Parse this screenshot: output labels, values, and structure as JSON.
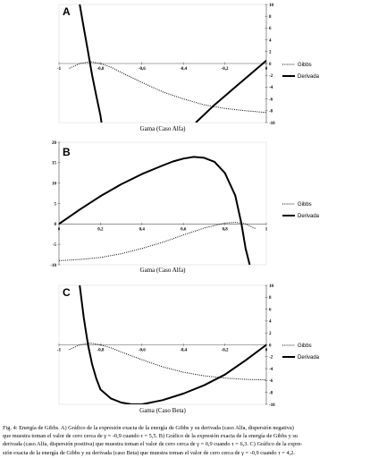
{
  "chart_data": [
    {
      "type": "line",
      "panel_label": "A",
      "xlabel": "Gama (Caso Alfa)",
      "xlim": [
        -1,
        0
      ],
      "ylim": [
        -10,
        10
      ],
      "x_tick_labels": [
        "-1",
        "-0,8",
        "-0,6",
        "-0,4",
        "-0,2",
        "0"
      ],
      "y_tick_labels": [
        "10",
        "8",
        "6",
        "4",
        "2",
        "0",
        "-2",
        "-4",
        "-6",
        "-8",
        "-10"
      ],
      "legend_position": "right",
      "series": [
        {
          "name": "Gibbs",
          "style": "dotted",
          "x": [
            -0.95,
            -0.9,
            -0.85,
            -0.8,
            -0.75,
            -0.7,
            -0.6,
            -0.5,
            -0.4,
            -0.3,
            -0.2,
            -0.1,
            0
          ],
          "y": [
            -0.8,
            0,
            0.3,
            0,
            -0.6,
            -1.5,
            -3.2,
            -4.8,
            -6,
            -7,
            -7.6,
            -8,
            -8.3
          ]
        },
        {
          "name": "Derivada",
          "style": "solid",
          "x": [
            -0.9,
            -0.88,
            -0.86,
            -0.84,
            -0.82,
            -0.8,
            -0.795
          ],
          "y": [
            10,
            6,
            2,
            -2,
            -5.5,
            -8.8,
            -10
          ]
        },
        {
          "name": "",
          "style": "solid",
          "x": [
            -0.34,
            -0.25,
            -0.15,
            -0.05,
            0
          ],
          "y": [
            -10,
            -7,
            -4,
            -1,
            0.5
          ]
        }
      ]
    },
    {
      "type": "line",
      "panel_label": "B",
      "xlabel": "Gama (Caso Alfa)",
      "xlim": [
        0,
        1
      ],
      "ylim": [
        -10,
        20
      ],
      "x_tick_labels": [
        "0",
        "0,2",
        "0,4",
        "0,6",
        "0,8",
        "1"
      ],
      "y_tick_labels": [
        "20",
        "15",
        "10",
        "5",
        "0",
        "-5",
        "-10"
      ],
      "legend_position": "right",
      "series": [
        {
          "name": "Gibbs",
          "style": "dotted",
          "x": [
            0,
            0.1,
            0.2,
            0.3,
            0.4,
            0.5,
            0.6,
            0.7,
            0.8,
            0.85,
            0.9,
            0.95
          ],
          "y": [
            -9,
            -8.7,
            -8.2,
            -7.3,
            -6,
            -4.5,
            -2.7,
            -1,
            0.2,
            0.4,
            0,
            -1.2
          ]
        },
        {
          "name": "Derivada",
          "style": "solid",
          "x": [
            0,
            0.1,
            0.2,
            0.3,
            0.4,
            0.5,
            0.55,
            0.6,
            0.65,
            0.7,
            0.75,
            0.8,
            0.85,
            0.88,
            0.9,
            0.92
          ],
          "y": [
            0,
            3.5,
            6.8,
            9.7,
            12.2,
            14.3,
            15.3,
            16,
            16.4,
            16.2,
            15.2,
            12.5,
            7,
            0,
            -6,
            -10
          ]
        }
      ]
    },
    {
      "type": "line",
      "panel_label": "C",
      "xlabel": "Gama (Caso Beta)",
      "xlim": [
        -1,
        0
      ],
      "ylim": [
        -10,
        10
      ],
      "x_tick_labels": [
        "-1",
        "-0,8",
        "-0,6",
        "-0,4",
        "-0,2",
        "0"
      ],
      "y_tick_labels": [
        "10",
        "8",
        "6",
        "4",
        "2",
        "0",
        "-2",
        "-4",
        "-6",
        "-8",
        "-10"
      ],
      "legend_position": "right",
      "series": [
        {
          "name": "Gibbs",
          "style": "dotted",
          "x": [
            -0.95,
            -0.9,
            -0.85,
            -0.8,
            -0.75,
            -0.7,
            -0.6,
            -0.5,
            -0.4,
            -0.3,
            -0.2,
            -0.1,
            0
          ],
          "y": [
            -0.8,
            0,
            0.3,
            0,
            -0.5,
            -1.2,
            -2.5,
            -3.7,
            -4.6,
            -5.2,
            -5.6,
            -5.8,
            -5.9
          ]
        },
        {
          "name": "Derivada",
          "style": "solid",
          "x": [
            -0.9,
            -0.88,
            -0.86,
            -0.84,
            -0.82,
            -0.8,
            -0.75,
            -0.7,
            -0.65,
            -0.6,
            -0.5,
            -0.4,
            -0.3,
            -0.2,
            -0.1,
            0
          ],
          "y": [
            10,
            4.5,
            0,
            -3.3,
            -5.7,
            -7.5,
            -9,
            -9.7,
            -10,
            -10,
            -9.3,
            -8.2,
            -6.8,
            -5,
            -2.6,
            0
          ]
        }
      ]
    }
  ],
  "caption_lines": [
    "Fig. 4: Energía de Gibbs. A) Gráfico de la expresión exacta de la energía de Gibbs y su derivada (caso Alfa, dispersión negativa)",
    "que muestra toman el valor de cero cerca de γ = -0,9 cuando τ = 5,5. B) Gráfico de la expresión exacta de la energía de Gibbs y su",
    "derivada (caso Alfa, dispersión positiva) que muestra toman el valor de cero cerca de γ = 0,9 cuando τ = 6,3. C) Gráfico de la expre-",
    "sión exacta de la energía de Gibbs y su derivada (caso Beta) que muestra toman el valor de cero cerca de γ = -0,9 cuando τ = 4,2."
  ]
}
